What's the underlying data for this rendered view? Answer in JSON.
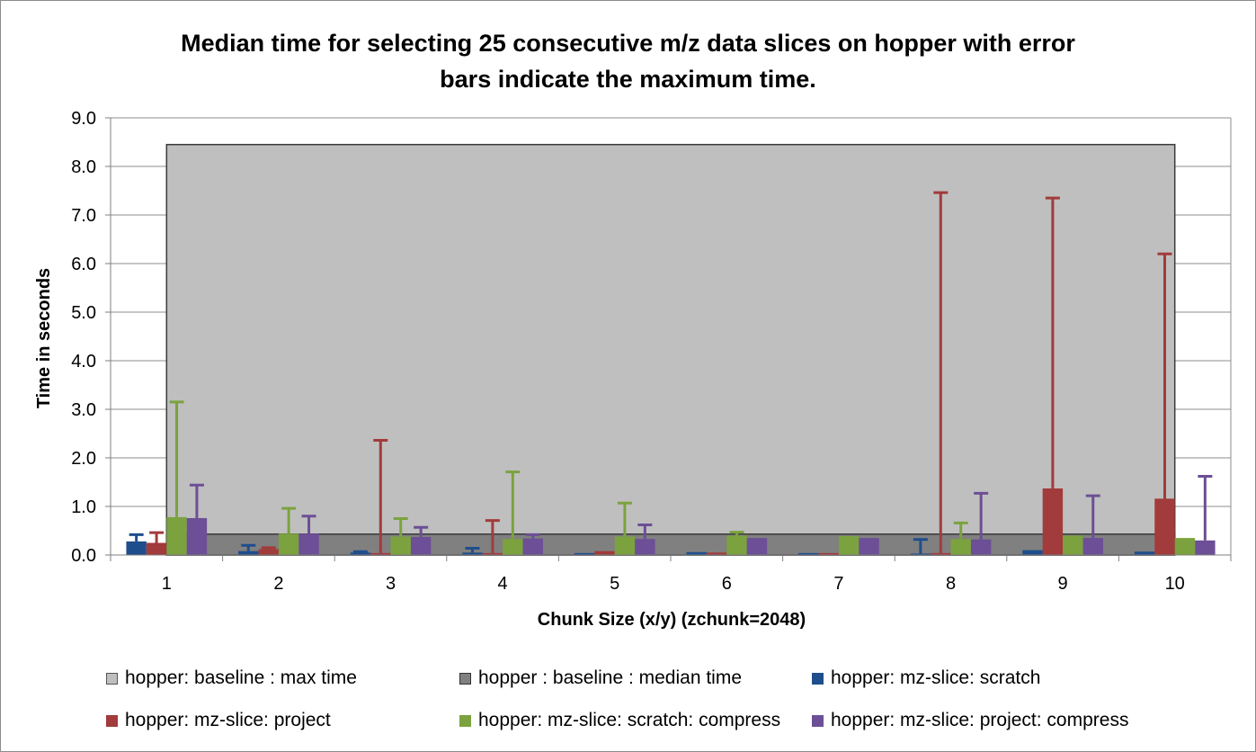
{
  "chart_data": {
    "type": "bar",
    "title_lines": [
      "Median time for selecting 25 consecutive m/z data slices on hopper with error",
      "bars indicate the maximum time."
    ],
    "xlabel": "Chunk Size (x/y) (zchunk=2048)",
    "ylabel": "Time in seconds",
    "ylim": [
      0,
      9
    ],
    "yticks": [
      "0.0",
      "1.0",
      "2.0",
      "3.0",
      "4.0",
      "5.0",
      "6.0",
      "7.0",
      "8.0",
      "9.0"
    ],
    "grid": true,
    "legend_position": "bottom",
    "categories": [
      "1",
      "2",
      "3",
      "4",
      "5",
      "6",
      "7",
      "8",
      "9",
      "10"
    ],
    "background_areas": [
      {
        "name": "hopper: baseline : max time",
        "value": 8.45,
        "color": "#bfbfbf"
      },
      {
        "name": "hopper : baseline : median time",
        "value": 0.43,
        "color": "#808080"
      }
    ],
    "series": [
      {
        "name": "hopper: mz-slice: scratch",
        "color": "#1f4e8c",
        "values": [
          0.28,
          0.08,
          0.05,
          0.05,
          0.04,
          0.06,
          0.04,
          0.03,
          0.1,
          0.07
        ],
        "max": [
          0.42,
          0.2,
          0.07,
          0.14,
          0.04,
          0.06,
          0.04,
          0.32,
          0.1,
          0.07
        ]
      },
      {
        "name": "hopper: mz-slice: project",
        "color": "#a23b3b",
        "values": [
          0.25,
          0.12,
          0.04,
          0.04,
          0.08,
          0.05,
          0.04,
          0.04,
          1.37,
          1.16
        ],
        "max": [
          0.46,
          0.15,
          2.36,
          0.71,
          0.08,
          0.05,
          0.04,
          7.46,
          7.35,
          6.2
        ]
      },
      {
        "name": "hopper: mz-slice: scratch: compress",
        "color": "#7ba23f",
        "values": [
          0.78,
          0.44,
          0.38,
          0.33,
          0.38,
          0.4,
          0.39,
          0.33,
          0.4,
          0.35
        ],
        "max": [
          3.15,
          0.96,
          0.75,
          1.71,
          1.07,
          0.47,
          0.39,
          0.66,
          0.4,
          0.35
        ]
      },
      {
        "name": "hopper: mz-slice: project: compress",
        "color": "#6c4f96",
        "values": [
          0.76,
          0.44,
          0.37,
          0.34,
          0.33,
          0.35,
          0.35,
          0.32,
          0.35,
          0.3
        ],
        "max": [
          1.44,
          0.8,
          0.57,
          0.42,
          0.62,
          0.35,
          0.35,
          1.27,
          1.22,
          1.62
        ]
      }
    ]
  }
}
